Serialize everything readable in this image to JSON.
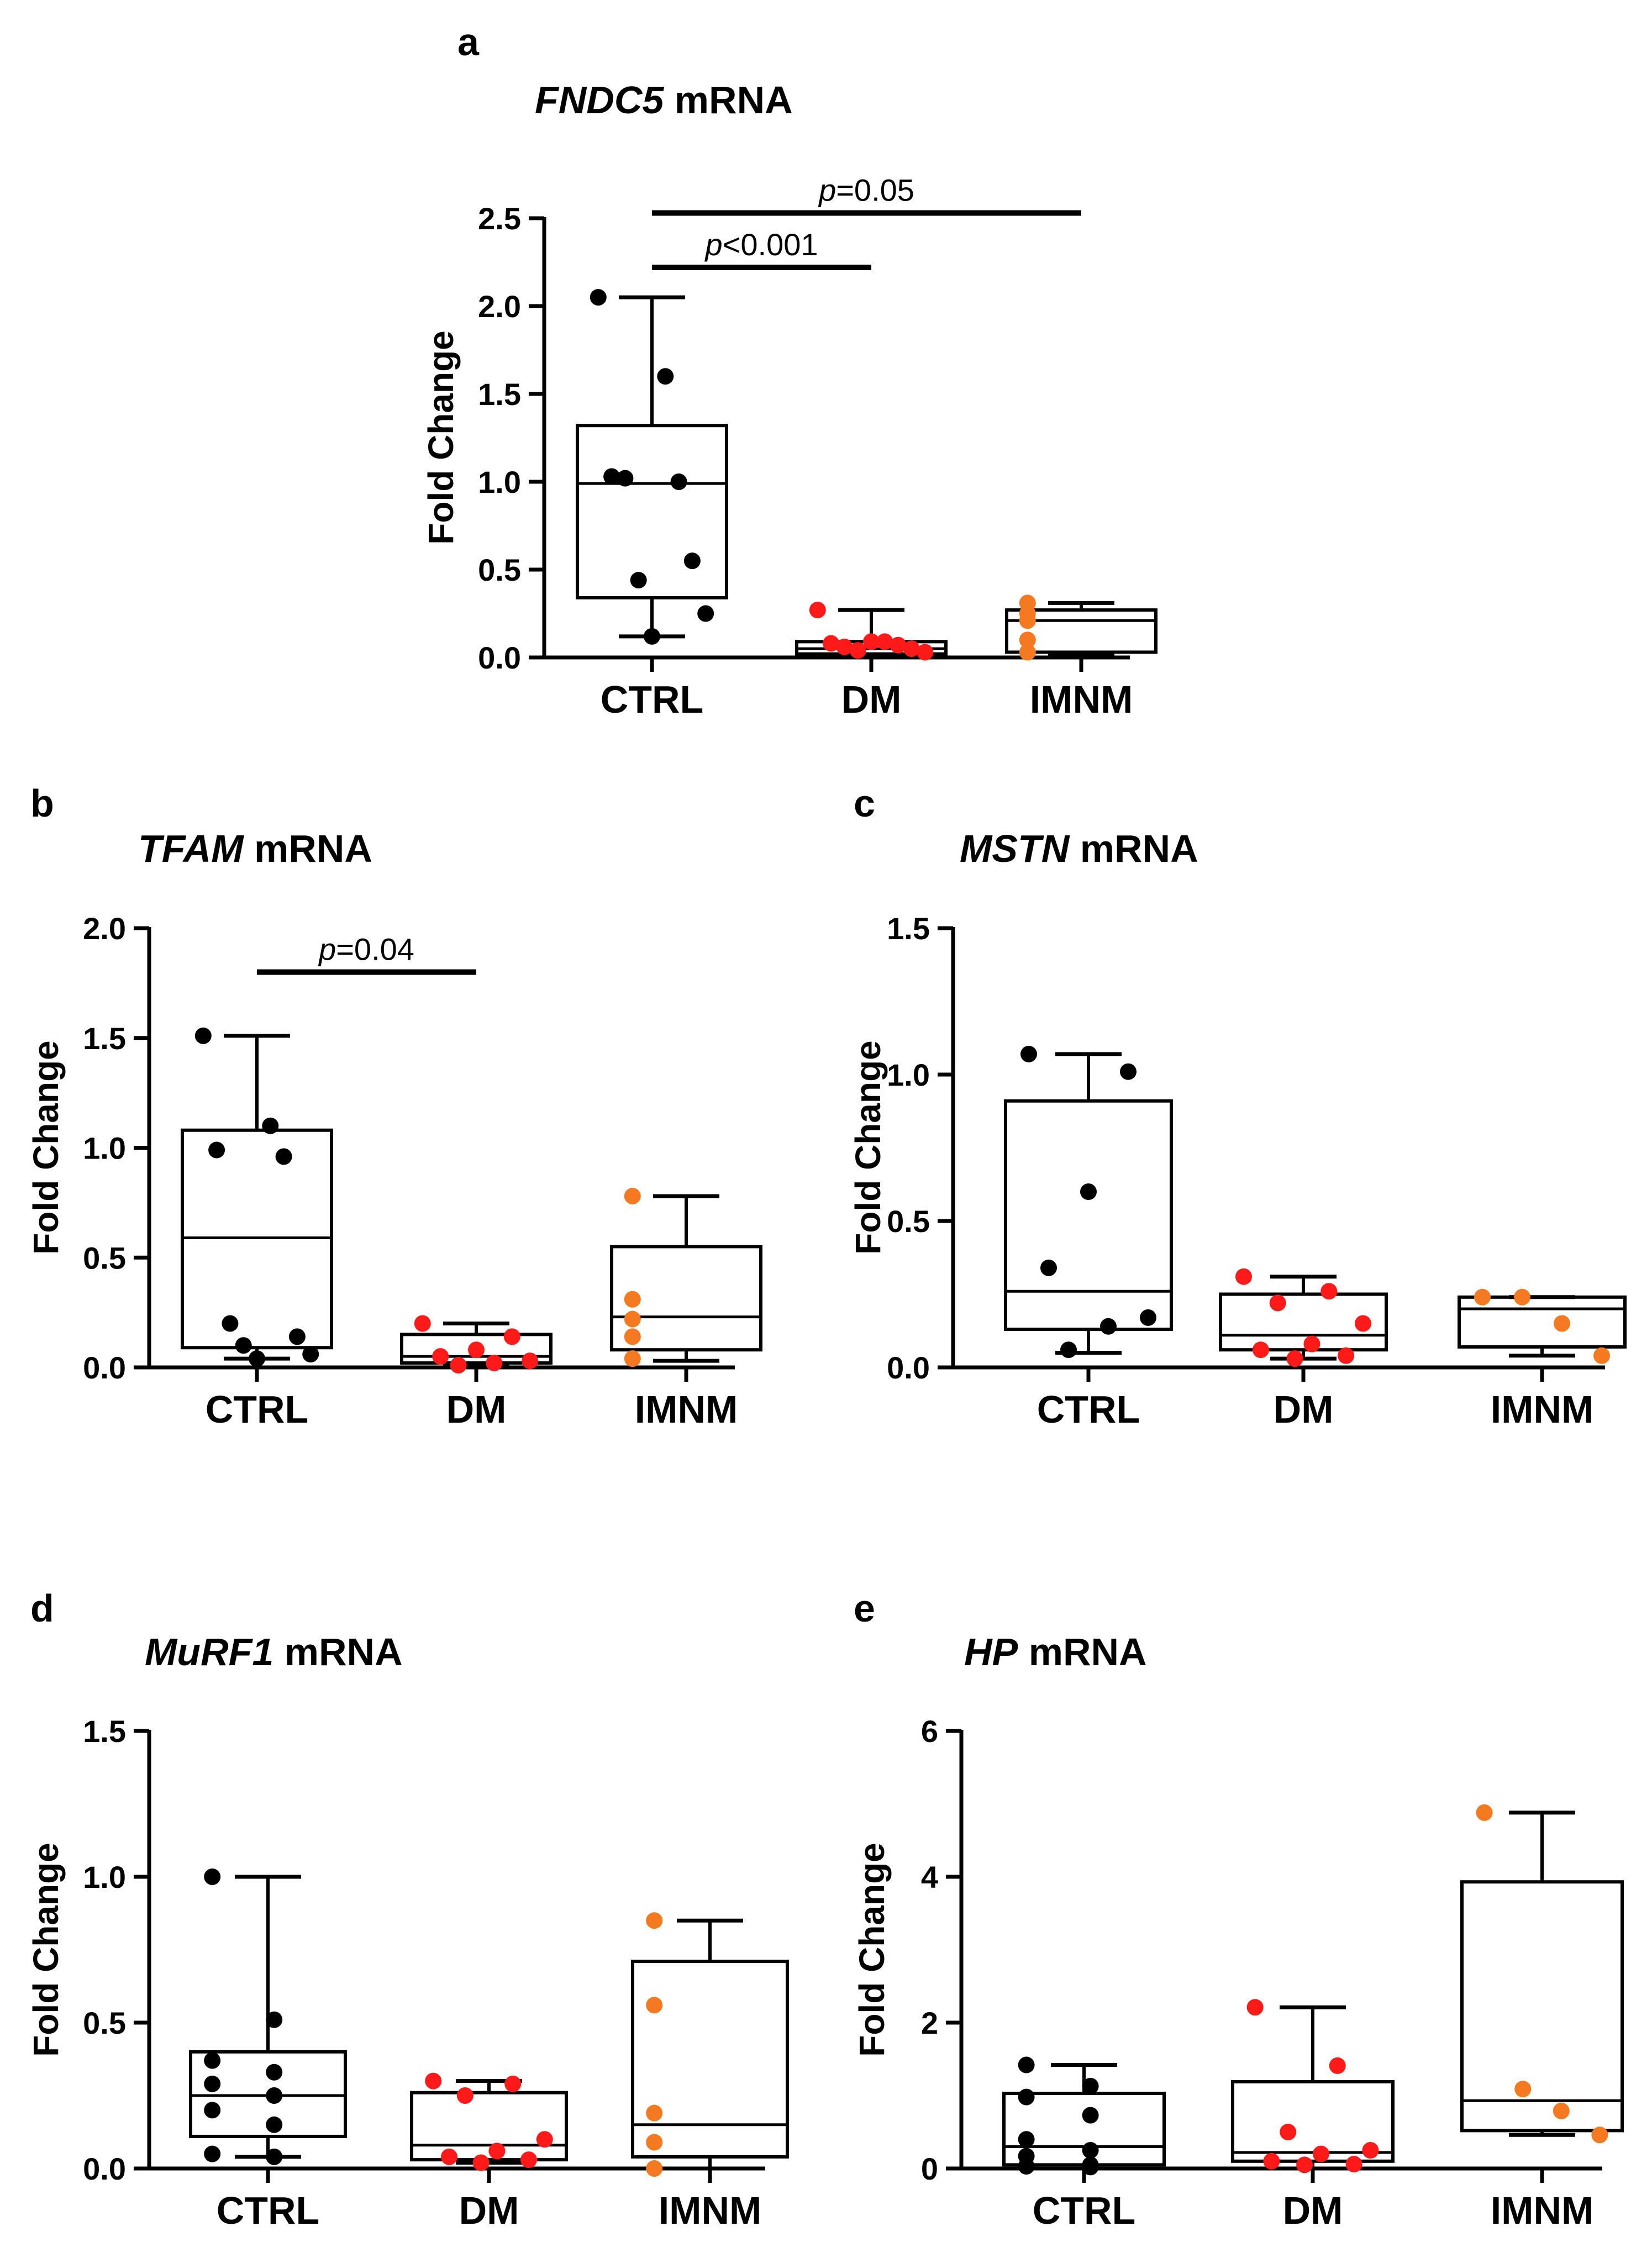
{
  "figure": {
    "panels": [
      "a",
      "b",
      "c",
      "d",
      "e"
    ]
  },
  "chart_data": [
    {
      "id": "a",
      "type": "box",
      "letter": "a",
      "title_gene": "FNDC5",
      "title_suffix": " mRNA",
      "ylabel": "Fold Change",
      "ylim": [
        0,
        2.5
      ],
      "yticks": [
        "0.0",
        "0.5",
        "1.0",
        "1.5",
        "2.0",
        "2.5"
      ],
      "categories": [
        "CTRL",
        "DM",
        "IMNM"
      ],
      "colors": [
        "#000000",
        "#ff1a1a",
        "#f47920"
      ],
      "boxes": [
        {
          "group": "CTRL",
          "min": 0.12,
          "q1": 0.34,
          "median": 0.99,
          "q3": 1.32,
          "max": 2.05,
          "points": [
            2.05,
            1.6,
            1.03,
            1.0,
            1.02,
            0.55,
            0.44,
            0.25,
            0.12
          ]
        },
        {
          "group": "DM",
          "min": 0.0,
          "q1": 0.02,
          "median": 0.05,
          "q3": 0.09,
          "max": 0.27,
          "points": [
            0.27,
            0.09,
            0.08,
            0.07,
            0.06,
            0.05,
            0.04,
            0.03,
            0.09
          ]
        },
        {
          "group": "IMNM",
          "min": 0.01,
          "q1": 0.03,
          "median": 0.21,
          "q3": 0.27,
          "max": 0.31,
          "points": [
            0.31,
            0.25,
            0.21,
            0.1,
            0.03
          ]
        }
      ],
      "significance": [
        {
          "from": 0,
          "to": 1,
          "y": 2.22,
          "p_symbol": "p",
          "text": "<0.001"
        },
        {
          "from": 0,
          "to": 2,
          "y": 2.53,
          "p_symbol": "p",
          "text": "=0.05"
        }
      ]
    },
    {
      "id": "b",
      "type": "box",
      "letter": "b",
      "title_gene": "TFAM",
      "title_suffix": " mRNA",
      "ylabel": "Fold Change",
      "ylim": [
        0,
        2.0
      ],
      "yticks": [
        "0.0",
        "0.5",
        "1.0",
        "1.5",
        "2.0"
      ],
      "categories": [
        "CTRL",
        "DM",
        "IMNM"
      ],
      "colors": [
        "#000000",
        "#ff1a1a",
        "#f47920"
      ],
      "boxes": [
        {
          "group": "CTRL",
          "min": 0.04,
          "q1": 0.09,
          "median": 0.59,
          "q3": 1.08,
          "max": 1.51,
          "points": [
            1.51,
            1.1,
            0.99,
            0.96,
            0.2,
            0.14,
            0.1,
            0.06,
            0.04
          ]
        },
        {
          "group": "DM",
          "min": 0.01,
          "q1": 0.02,
          "median": 0.05,
          "q3": 0.15,
          "max": 0.2,
          "points": [
            0.2,
            0.14,
            0.08,
            0.05,
            0.03,
            0.02,
            0.01
          ]
        },
        {
          "group": "IMNM",
          "min": 0.03,
          "q1": 0.08,
          "median": 0.23,
          "q3": 0.55,
          "max": 0.78,
          "points": [
            0.78,
            0.31,
            0.22,
            0.14,
            0.04
          ]
        }
      ],
      "significance": [
        {
          "from": 0,
          "to": 1,
          "y": 1.8,
          "p_symbol": "p",
          "text": "=0.04"
        }
      ]
    },
    {
      "id": "c",
      "type": "box",
      "letter": "c",
      "title_gene": "MSTN",
      "title_suffix": " mRNA",
      "ylabel": "Fold Change",
      "ylim": [
        0,
        1.5
      ],
      "yticks": [
        "0.0",
        "0.5",
        "1.0",
        "1.5"
      ],
      "categories": [
        "CTRL",
        "DM",
        "IMNM"
      ],
      "colors": [
        "#000000",
        "#ff1a1a",
        "#f47920"
      ],
      "boxes": [
        {
          "group": "CTRL",
          "min": 0.05,
          "q1": 0.13,
          "median": 0.26,
          "q3": 0.91,
          "max": 1.07,
          "points": [
            1.07,
            1.01,
            0.6,
            0.34,
            0.17,
            0.14,
            0.06
          ]
        },
        {
          "group": "DM",
          "min": 0.03,
          "q1": 0.06,
          "median": 0.11,
          "q3": 0.25,
          "max": 0.31,
          "points": [
            0.31,
            0.26,
            0.22,
            0.15,
            0.08,
            0.06,
            0.04,
            0.03
          ]
        },
        {
          "group": "IMNM",
          "min": 0.04,
          "q1": 0.07,
          "median": 0.2,
          "q3": 0.24,
          "max": 0.24,
          "points": [
            0.24,
            0.24,
            0.15,
            0.04
          ]
        }
      ],
      "significance": []
    },
    {
      "id": "d",
      "type": "box",
      "letter": "d",
      "title_gene": "MuRF1",
      "title_suffix": " mRNA",
      "ylabel": "Fold Change",
      "ylim": [
        0,
        1.5
      ],
      "yticks": [
        "0.0",
        "0.5",
        "1.0",
        "1.5"
      ],
      "categories": [
        "CTRL",
        "DM",
        "IMNM"
      ],
      "colors": [
        "#000000",
        "#ff1a1a",
        "#f47920"
      ],
      "boxes": [
        {
          "group": "CTRL",
          "min": 0.04,
          "q1": 0.11,
          "median": 0.25,
          "q3": 0.4,
          "max": 1.0,
          "points": [
            1.0,
            0.51,
            0.37,
            0.33,
            0.29,
            0.25,
            0.2,
            0.15,
            0.05,
            0.04
          ]
        },
        {
          "group": "DM",
          "min": 0.02,
          "q1": 0.03,
          "median": 0.08,
          "q3": 0.26,
          "max": 0.3,
          "points": [
            0.3,
            0.29,
            0.25,
            0.1,
            0.06,
            0.04,
            0.03,
            0.02
          ]
        },
        {
          "group": "IMNM",
          "min": 0.0,
          "q1": 0.04,
          "median": 0.15,
          "q3": 0.71,
          "max": 0.85,
          "points": [
            0.85,
            0.56,
            0.19,
            0.09,
            0.0
          ]
        }
      ],
      "significance": []
    },
    {
      "id": "e",
      "type": "box",
      "letter": "e",
      "title_gene": "HP",
      "title_suffix": " mRNA",
      "ylabel": "Fold Change",
      "ylim": [
        0,
        6
      ],
      "yticks": [
        "0",
        "2",
        "4",
        "6"
      ],
      "categories": [
        "CTRL",
        "DM",
        "IMNM"
      ],
      "colors": [
        "#000000",
        "#ff1a1a",
        "#f47920"
      ],
      "boxes": [
        {
          "group": "CTRL",
          "min": 0.0,
          "q1": 0.05,
          "median": 0.3,
          "q3": 1.03,
          "max": 1.42,
          "points": [
            1.42,
            1.13,
            0.98,
            0.73,
            0.4,
            0.25,
            0.17,
            0.05,
            0.03,
            0.02
          ]
        },
        {
          "group": "DM",
          "min": 0.0,
          "q1": 0.1,
          "median": 0.22,
          "q3": 1.19,
          "max": 2.21,
          "points": [
            2.21,
            1.41,
            0.5,
            0.25,
            0.2,
            0.1,
            0.06,
            0.05
          ]
        },
        {
          "group": "IMNM",
          "min": 0.46,
          "q1": 0.52,
          "median": 0.93,
          "q3": 3.93,
          "max": 4.88,
          "points": [
            4.88,
            1.09,
            0.79,
            0.46
          ]
        }
      ],
      "significance": []
    }
  ]
}
